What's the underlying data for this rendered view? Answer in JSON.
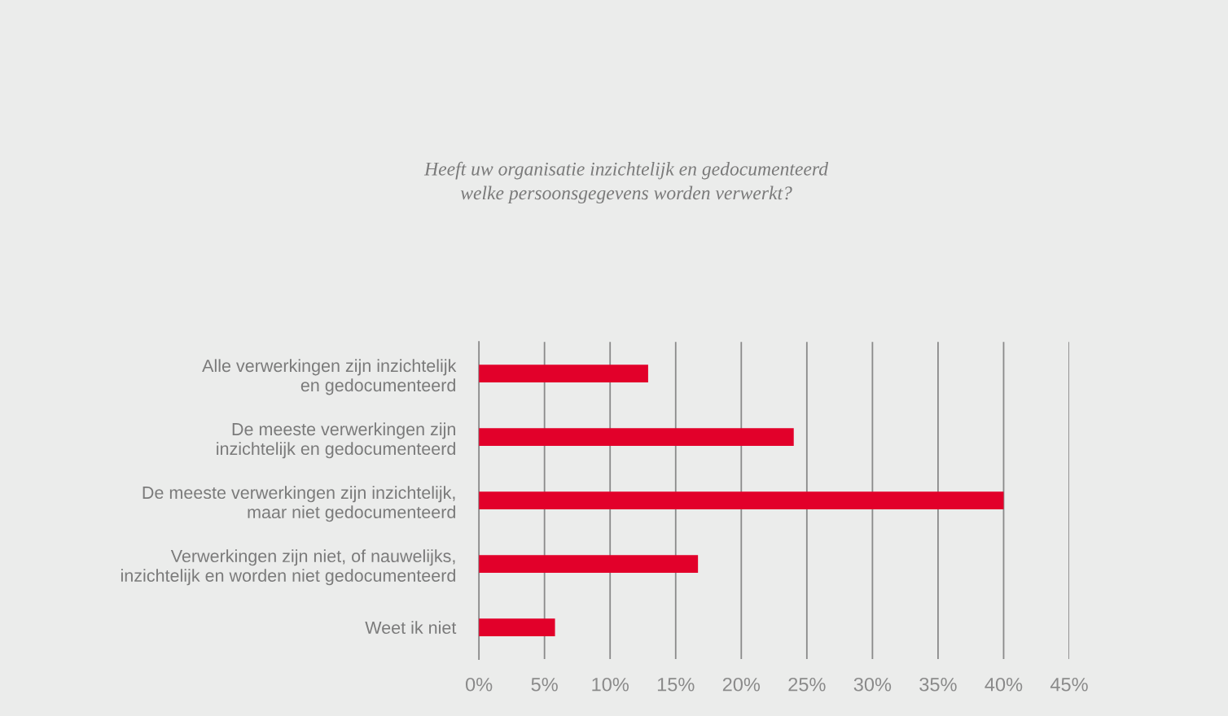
{
  "chart_data": {
    "type": "bar",
    "orientation": "horizontal",
    "title": "Heeft uw organisatie inzichtelijk en gedocumenteerd\nwelke persoonsgegevens worden verwerkt?",
    "categories": [
      "Alle verwerkingen zijn inzichtelijk\nen gedocumenteerd",
      "De meeste verwerkingen zijn\ninzichtelijk en gedocumenteerd",
      "De meeste verwerkingen zijn inzichtelijk,\nmaar niet gedocumenteerd",
      "Verwerkingen zijn niet, of nauwelijks,\ninzichtelijk en worden niet gedocumenteerd",
      "Weet ik niet"
    ],
    "values": [
      12.9,
      24.0,
      40.0,
      16.7,
      5.8
    ],
    "color": "#e2002a",
    "xlim": [
      0,
      45
    ],
    "xticks": [
      {
        "value": 0,
        "label": "0%"
      },
      {
        "value": 5,
        "label": "5%"
      },
      {
        "value": 10,
        "label": "10%"
      },
      {
        "value": 15,
        "label": "15%"
      },
      {
        "value": 20,
        "label": "20%"
      },
      {
        "value": 25,
        "label": "25%"
      },
      {
        "value": 30,
        "label": "30%"
      },
      {
        "value": 35,
        "label": "35%"
      },
      {
        "value": 40,
        "label": "40%"
      },
      {
        "value": 45,
        "label": "45%"
      }
    ],
    "grid": "x"
  }
}
